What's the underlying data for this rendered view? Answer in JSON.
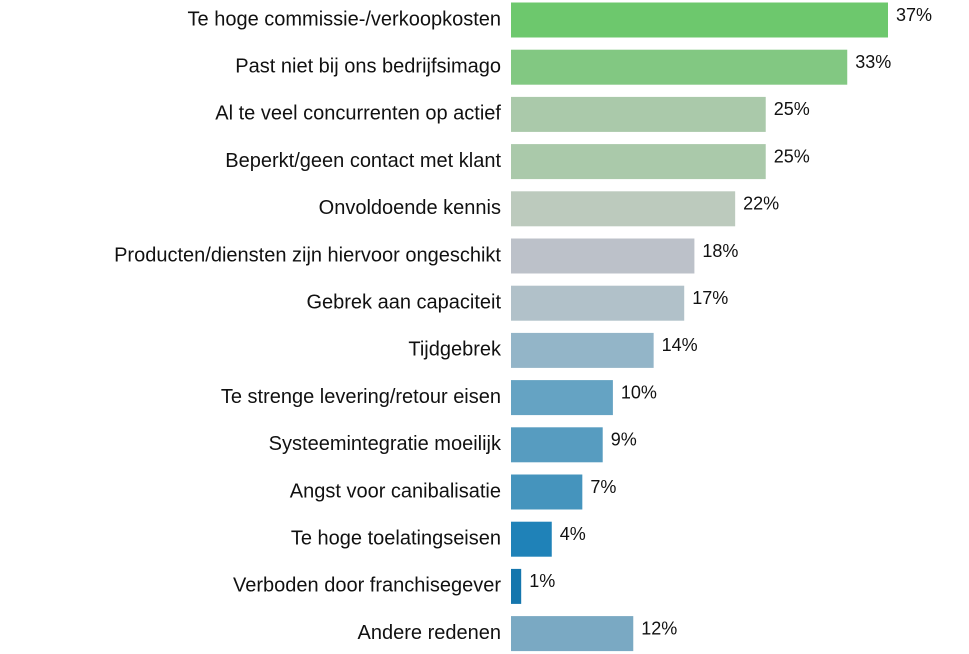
{
  "chart_data": {
    "type": "bar",
    "orientation": "horizontal",
    "categories": [
      "Te hoge commissie-/verkoopkosten",
      "Past niet bij ons bedrijfsimago",
      "Al te veel concurrenten op actief",
      "Beperkt/geen contact met klant",
      "Onvoldoende kennis",
      "Producten/diensten zijn hiervoor ongeschikt",
      "Gebrek aan capaciteit",
      "Tijdgebrek",
      "Te strenge levering/retour eisen",
      "Systeemintegratie moeilijk",
      "Angst voor canibalisatie",
      "Te hoge toelatingseisen",
      "Verboden door franchisegever",
      "Andere redenen"
    ],
    "values": [
      37,
      33,
      25,
      25,
      22,
      18,
      17,
      14,
      10,
      9,
      7,
      4,
      1,
      12
    ],
    "value_labels": [
      "37%",
      "33%",
      "25%",
      "25%",
      "22%",
      "18%",
      "17%",
      "14%",
      "10%",
      "9%",
      "7%",
      "4%",
      "1%",
      "12%"
    ],
    "colors": [
      "#6dc86d",
      "#82c882",
      "#aac9aa",
      "#aac9aa",
      "#bccabd",
      "#bcc1c9",
      "#b1c1c9",
      "#93b5c8",
      "#65a3c3",
      "#579cc0",
      "#4594bd",
      "#1f82b8",
      "#1576ad",
      "#7aa9c3"
    ]
  }
}
